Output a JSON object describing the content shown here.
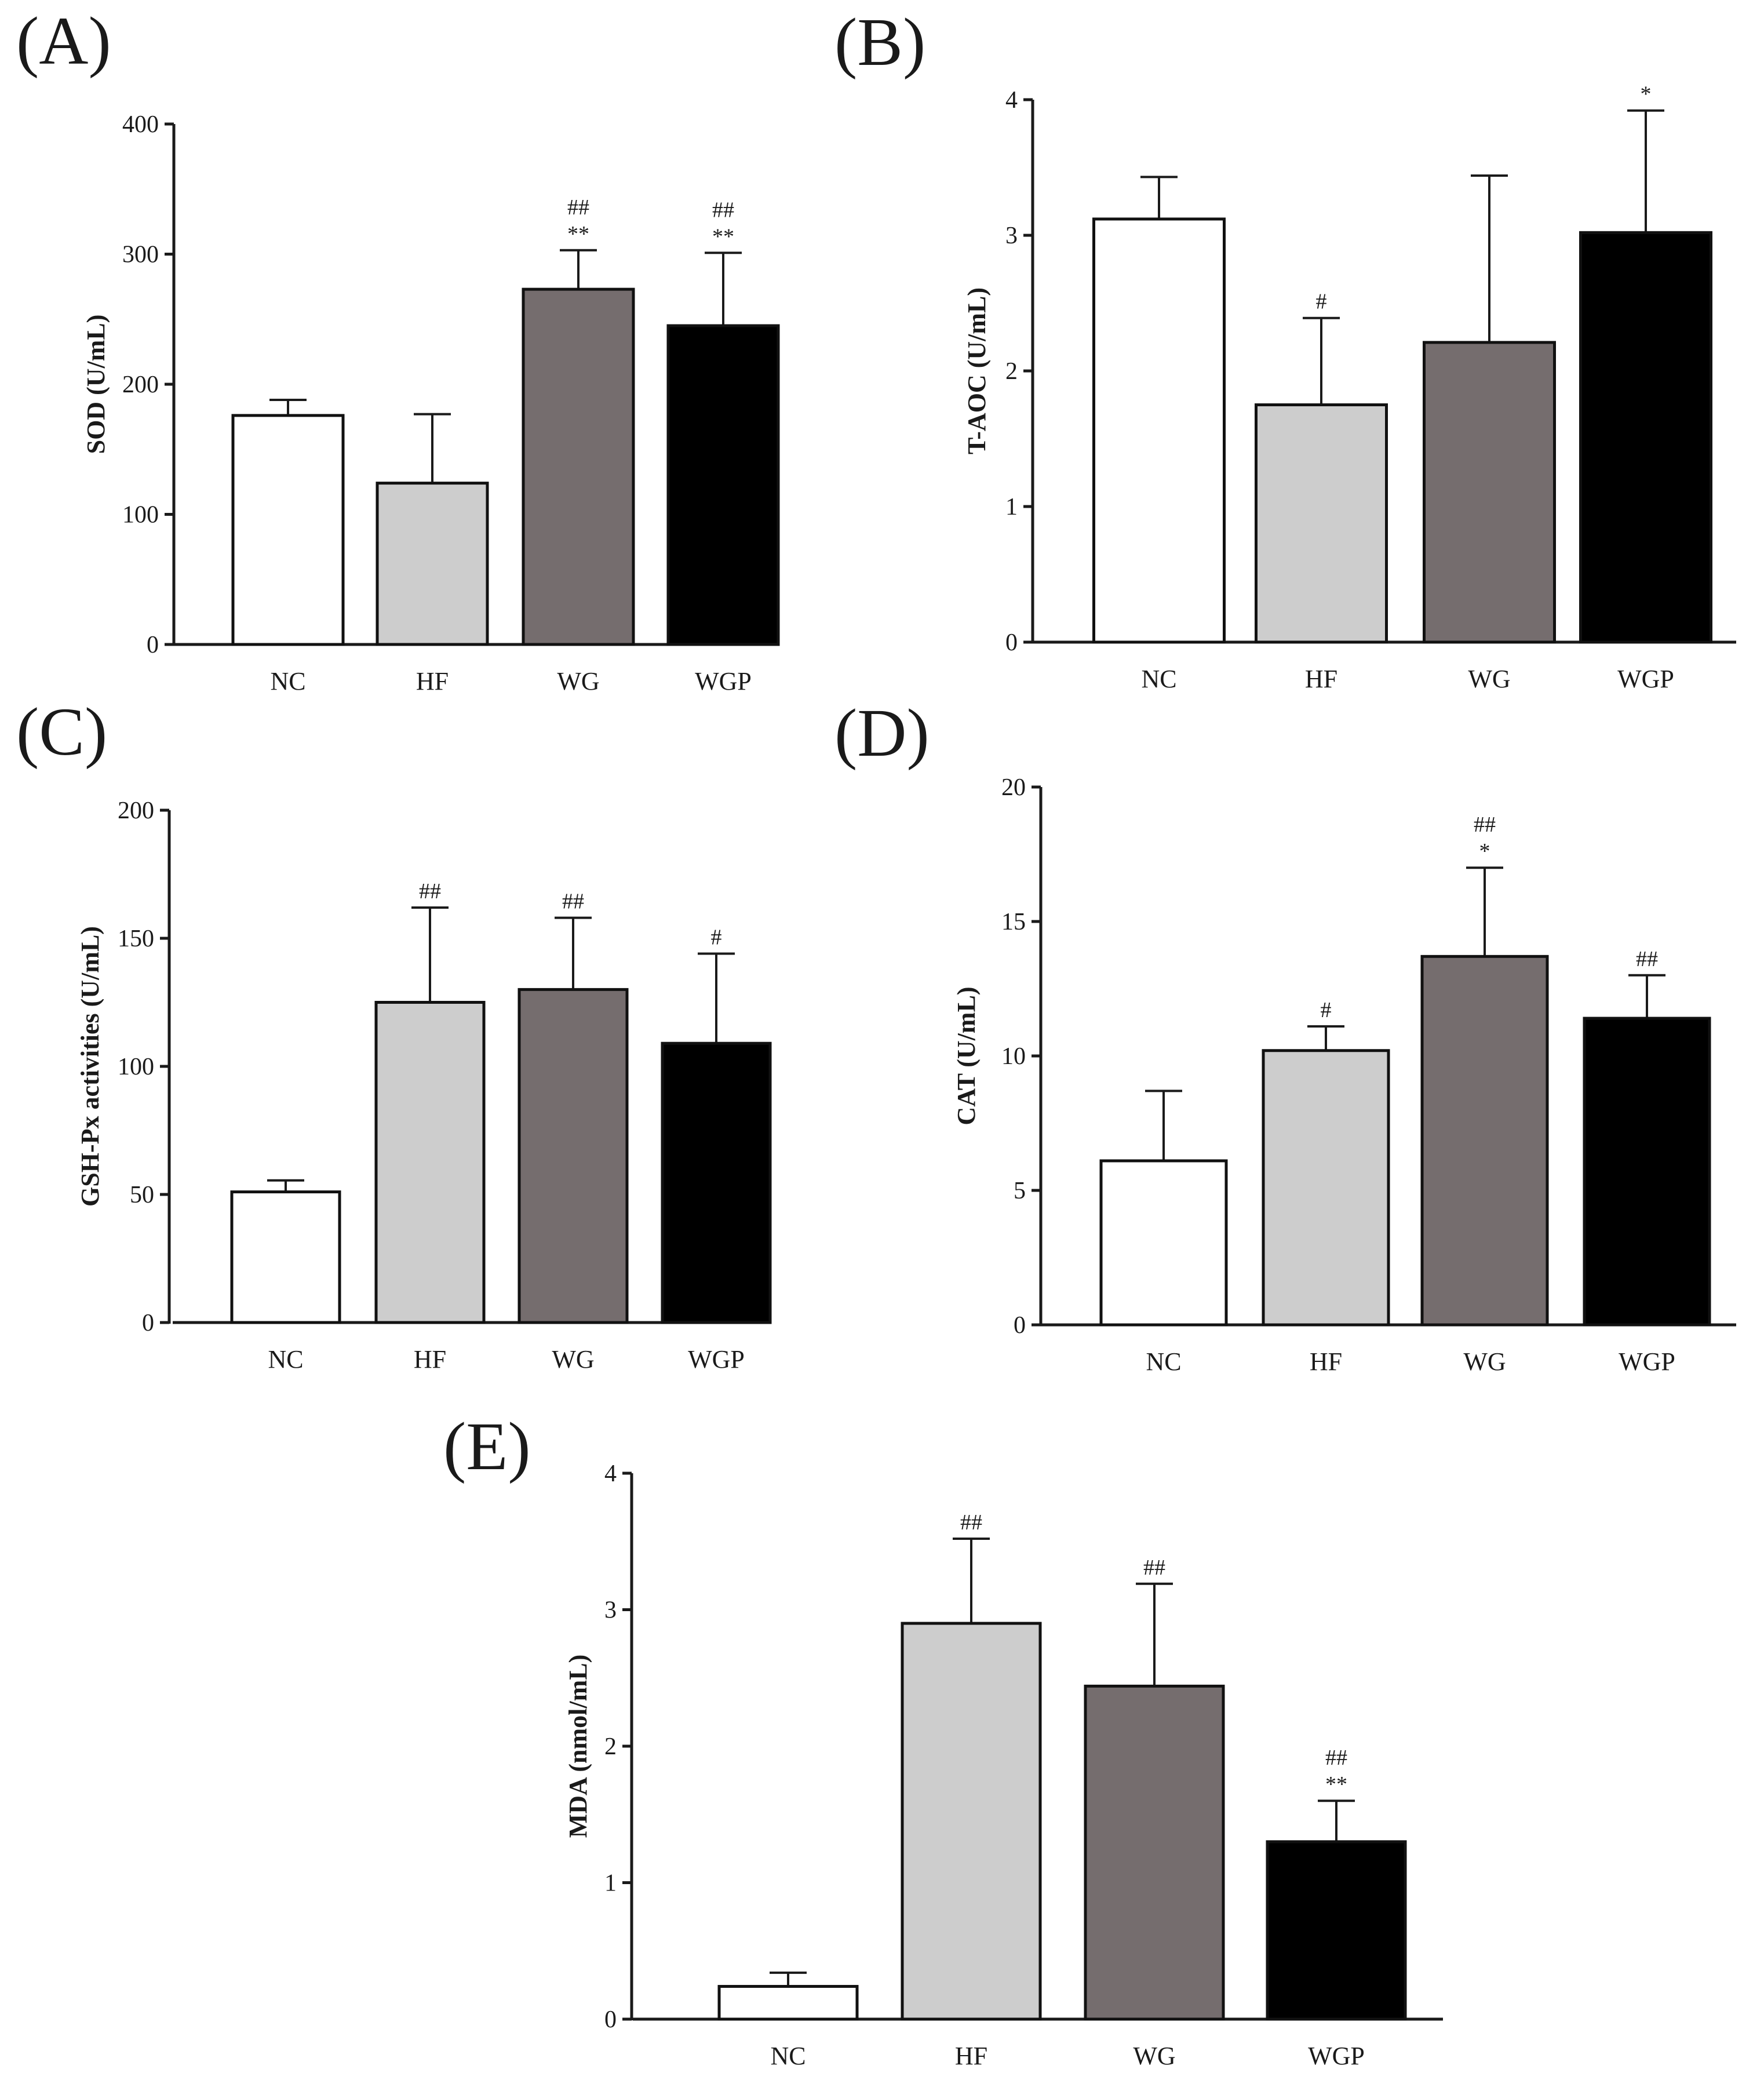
{
  "figure": {
    "colors": {
      "NC": "#ffffff",
      "HF": "#cdcdcd",
      "WG": "#756d6e",
      "WGP": "#000000",
      "axis": "#1a1a1a"
    }
  },
  "chart_data": [
    {
      "panel": "(A)",
      "type": "bar",
      "categories": [
        "NC",
        "HF",
        "WG",
        "WGP"
      ],
      "values": [
        176,
        124,
        273,
        245
      ],
      "errors": [
        12,
        53,
        30,
        56
      ],
      "annotations": [
        [],
        [],
        [
          "##",
          "**"
        ],
        [
          "##",
          "**"
        ]
      ],
      "ylabel": "SOD (U/mL)",
      "ylim": [
        0,
        400
      ],
      "yticks": [
        "0",
        "100",
        "200",
        "300",
        "400"
      ]
    },
    {
      "panel": "(B)",
      "type": "bar",
      "categories": [
        "NC",
        "HF",
        "WG",
        "WGP"
      ],
      "values": [
        3.12,
        1.75,
        2.21,
        3.02
      ],
      "errors": [
        0.31,
        0.64,
        1.23,
        0.9
      ],
      "annotations": [
        [],
        [
          "#"
        ],
        [],
        [
          "*"
        ]
      ],
      "ylabel": "T-AOC (U/mL)",
      "ylim": [
        0,
        4
      ],
      "yticks": [
        "0",
        "1",
        "2",
        "3",
        "4"
      ]
    },
    {
      "panel": "(C)",
      "type": "bar",
      "categories": [
        "NC",
        "HF",
        "WG",
        "WGP"
      ],
      "values": [
        51,
        125,
        130,
        109
      ],
      "errors": [
        4.5,
        37,
        28,
        35
      ],
      "annotations": [
        [],
        [
          "##"
        ],
        [
          "##"
        ],
        [
          "#"
        ]
      ],
      "ylabel": "GSH-Px activities (U/mL)",
      "ylim": [
        0,
        200
      ],
      "yticks": [
        "0",
        "50",
        "100",
        "150",
        "200"
      ]
    },
    {
      "panel": "(D)",
      "type": "bar",
      "categories": [
        "NC",
        "HF",
        "WG",
        "WGP"
      ],
      "values": [
        6.1,
        10.2,
        13.7,
        11.4
      ],
      "errors": [
        2.6,
        0.9,
        3.3,
        1.6
      ],
      "annotations": [
        [],
        [
          "#"
        ],
        [
          "##",
          "*"
        ],
        [
          "##"
        ]
      ],
      "ylabel": "CAT (U/mL)",
      "ylim": [
        0,
        20
      ],
      "yticks": [
        "0",
        "5",
        "10",
        "15",
        "20"
      ]
    },
    {
      "panel": "(E)",
      "type": "bar",
      "categories": [
        "NC",
        "HF",
        "WG",
        "WGP"
      ],
      "values": [
        0.24,
        2.9,
        2.44,
        1.3
      ],
      "errors": [
        0.1,
        0.62,
        0.75,
        0.3
      ],
      "annotations": [
        [],
        [
          "##"
        ],
        [
          "##"
        ],
        [
          "##",
          "**"
        ]
      ],
      "ylabel": "MDA (nmol/mL)",
      "ylim": [
        0,
        4
      ],
      "yticks": [
        "0",
        "1",
        "2",
        "3",
        "4"
      ]
    }
  ]
}
